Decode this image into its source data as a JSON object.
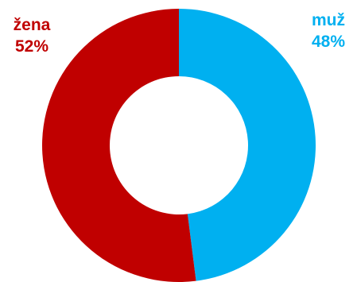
{
  "chart_data": {
    "type": "pie",
    "variant": "donut",
    "slices": [
      {
        "label": "muž",
        "value": 48,
        "value_label": "48%",
        "color": "#00B0F0"
      },
      {
        "label": "žena",
        "value": 52,
        "value_label": "52%",
        "color": "#C00000"
      }
    ],
    "start_angle": "12 o'clock",
    "direction": "clockwise",
    "legend": "none",
    "labels_placement": "top-corners"
  }
}
